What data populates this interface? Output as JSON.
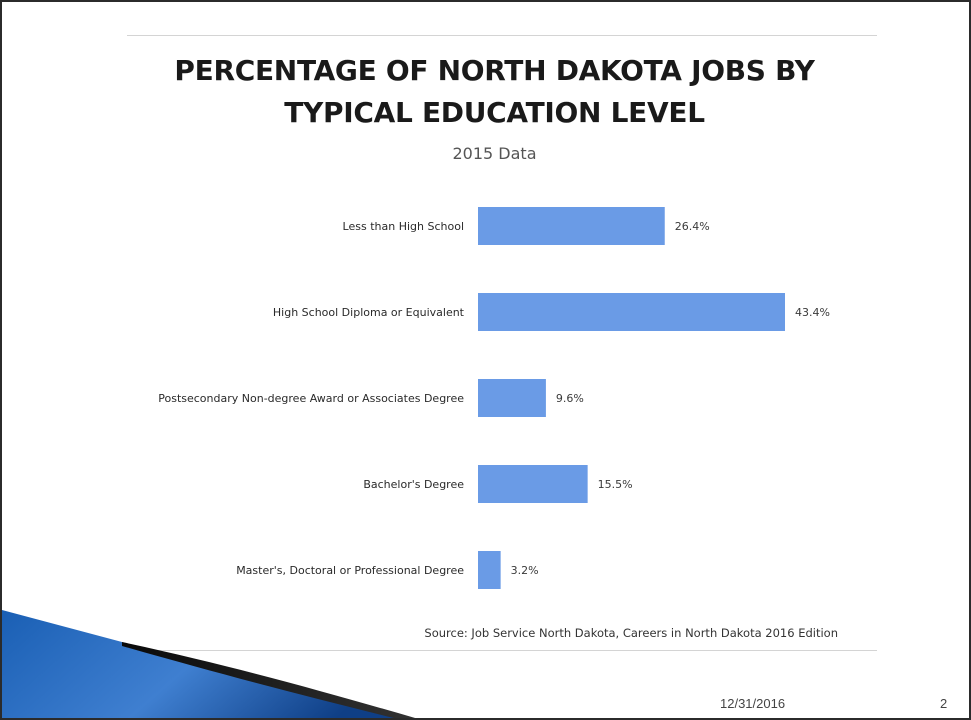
{
  "chart_data": {
    "type": "bar",
    "orientation": "horizontal",
    "title": "PERCENTAGE OF NORTH DAKOTA JOBS BY TYPICAL EDUCATION LEVEL",
    "subtitle": "2015 Data",
    "categories": [
      "Less than High School",
      "High School Diploma or Equivalent",
      "Postsecondary Non-degree Award or Associates Degree",
      "Bachelor's Degree",
      "Master's, Doctoral or Professional Degree"
    ],
    "values": [
      26.4,
      43.4,
      9.6,
      15.5,
      3.2
    ],
    "value_labels": [
      "26.4%",
      "43.4%",
      "9.6%",
      "15.5%",
      "3.2%"
    ],
    "xlim": [
      0,
      50
    ],
    "grid": false,
    "legend": "none",
    "bar_color": "#6a9be6"
  },
  "source": "Source: Job Service North Dakota, Careers in North Dakota 2016 Edition",
  "footer": {
    "date": "12/31/2016",
    "page": "2"
  }
}
